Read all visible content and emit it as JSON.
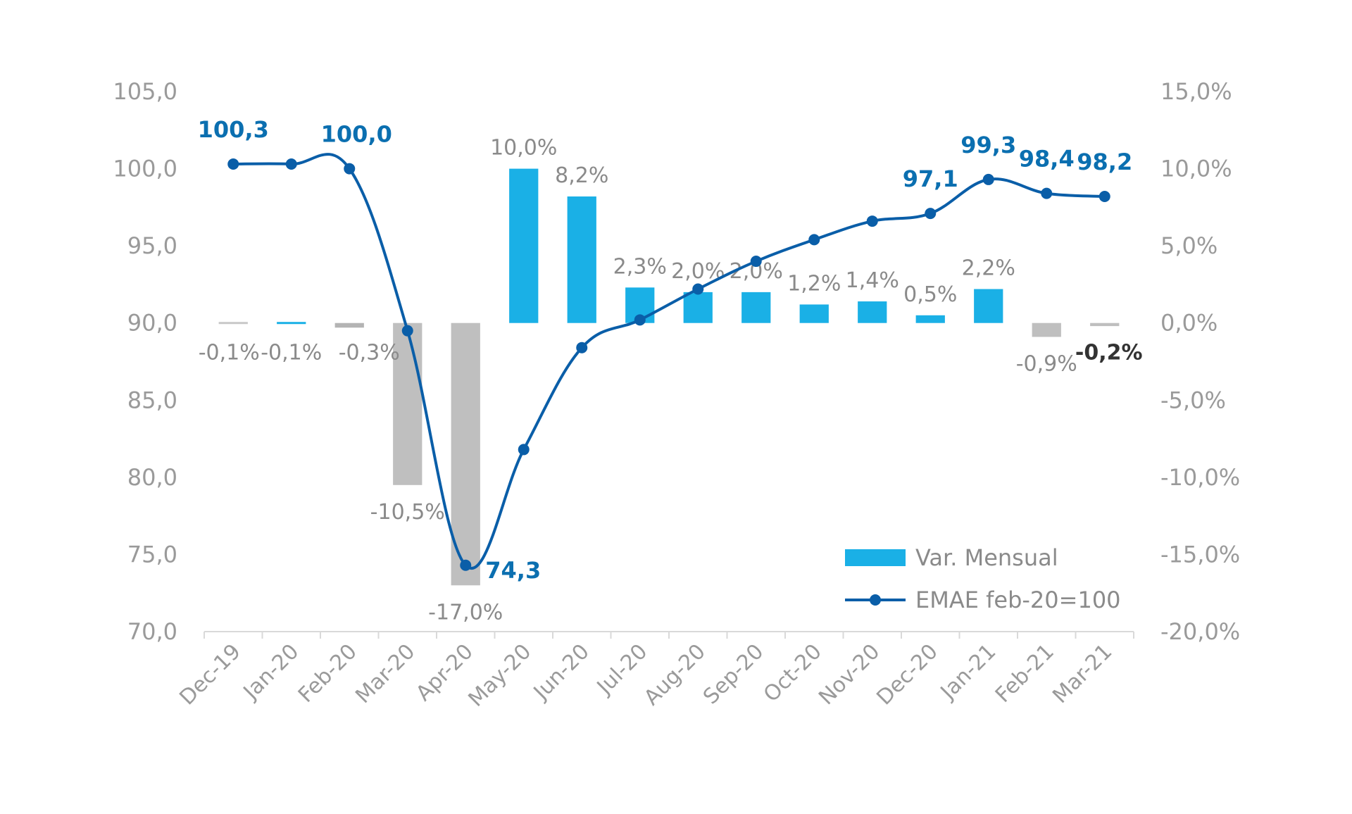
{
  "chart_data": {
    "type": "bar+line",
    "categories": [
      "Dec-19",
      "Jan-20",
      "Feb-20",
      "Mar-20",
      "Apr-20",
      "May-20",
      "Jun-20",
      "Jul-20",
      "Aug-20",
      "Sep-20",
      "Oct-20",
      "Nov-20",
      "Dec-20",
      "Jan-21",
      "Feb-21",
      "Mar-21"
    ],
    "y_left": {
      "ticks": [
        "70,0",
        "75,0",
        "80,0",
        "85,0",
        "90,0",
        "95,0",
        "100,0",
        "105,0"
      ],
      "range": [
        70,
        105
      ]
    },
    "y_right": {
      "ticks": [
        "-20,0%",
        "-15,0%",
        "-10,0%",
        "-5,0%",
        "0,0%",
        "5,0%",
        "10,0%",
        "15,0%"
      ],
      "range": [
        -20,
        15
      ]
    },
    "series": [
      {
        "name": "Var. Mensual",
        "type": "bar",
        "axis": "right",
        "values": [
          -0.1,
          -0.1,
          -0.3,
          -10.5,
          -17.0,
          10.0,
          8.2,
          2.3,
          2.0,
          2.0,
          1.2,
          1.4,
          0.5,
          2.2,
          -0.9,
          -0.2
        ],
        "labels": [
          "-0,1%",
          "-0,1%",
          "-0,3%",
          "-10,5%",
          "-17,0%",
          "10,0%",
          "8,2%",
          "2,3%",
          "2,0%",
          "2,0%",
          "1,2%",
          "1,4%",
          "0,5%",
          "2,2%",
          "-0,9%",
          "-0,2%"
        ],
        "colors": [
          "#c8c8c8",
          "#1ab0e6",
          "#b4b4b4",
          "#bfbfbf",
          "#bfbfbf",
          "#1ab0e6",
          "#1ab0e6",
          "#1ab0e6",
          "#1ab0e6",
          "#1ab0e6",
          "#1ab0e6",
          "#1ab0e6",
          "#1ab0e6",
          "#1ab0e6",
          "#bfbfbf",
          "#bfbfbf"
        ]
      },
      {
        "name": "EMAE feb-20=100",
        "type": "line",
        "axis": "left",
        "values": [
          100.3,
          100.3,
          100.0,
          89.5,
          74.3,
          81.8,
          88.4,
          90.2,
          92.2,
          94.0,
          95.4,
          96.6,
          97.1,
          99.3,
          98.4,
          98.2
        ],
        "labels": [
          "100,3",
          "",
          "100,0",
          "",
          "74,3",
          "",
          "",
          "",
          "",
          "",
          "",
          "",
          "97,1",
          "99,3",
          "98,4",
          "98,2"
        ]
      }
    ],
    "colors": {
      "bar_positive": "#1ab0e6",
      "bar_negative": "#bfbfbf",
      "line": "#0a5ea8",
      "line_label": "#0b6fb0",
      "axis": "#d9d9d9",
      "tick_text": "#9a9a9a"
    },
    "legend": {
      "position": "bottom-right",
      "entries": [
        "Var. Mensual",
        "EMAE feb-20=100"
      ]
    },
    "grid": false
  }
}
